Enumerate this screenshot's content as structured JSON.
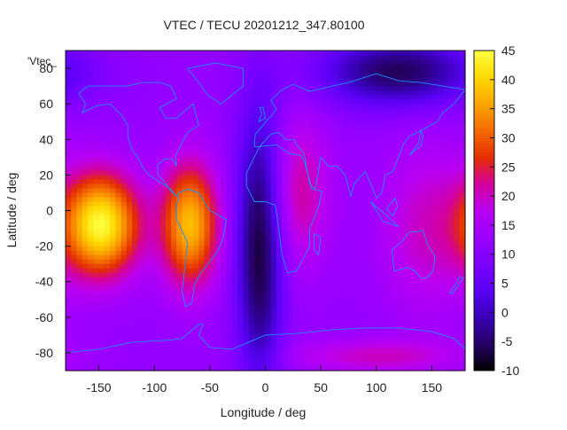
{
  "chart_data": {
    "type": "heatmap",
    "title": "VTEC / TECU 20201212_347.80100",
    "xlabel": "Longitude / deg",
    "ylabel": "Latitude / deg",
    "xlim": [
      -180,
      180
    ],
    "ylim": [
      -90,
      90
    ],
    "x_ticks": [
      {
        "value": -150,
        "label": "-150"
      },
      {
        "value": -100,
        "label": "-100"
      },
      {
        "value": -50,
        "label": "-50"
      },
      {
        "value": 0,
        "label": "0"
      },
      {
        "value": 50,
        "label": "50"
      },
      {
        "value": 100,
        "label": "100"
      },
      {
        "value": 150,
        "label": "150"
      }
    ],
    "y_ticks": [
      {
        "value": 80,
        "label": "80"
      },
      {
        "value": 60,
        "label": "60"
      },
      {
        "value": 40,
        "label": "40"
      },
      {
        "value": 20,
        "label": "20"
      },
      {
        "value": 0,
        "label": "0"
      },
      {
        "value": -20,
        "label": "-20"
      },
      {
        "value": -40,
        "label": "-40"
      },
      {
        "value": -60,
        "label": "-60"
      },
      {
        "value": -80,
        "label": "-80"
      }
    ],
    "colorbar": {
      "min": -10,
      "max": 45,
      "ticks": [
        {
          "value": 45,
          "label": "45"
        },
        {
          "value": 40,
          "label": "40"
        },
        {
          "value": 35,
          "label": "35"
        },
        {
          "value": 30,
          "label": "30"
        },
        {
          "value": 25,
          "label": "25"
        },
        {
          "value": 20,
          "label": "20"
        },
        {
          "value": 15,
          "label": "15"
        },
        {
          "value": 10,
          "label": "10"
        },
        {
          "value": 5,
          "label": "5"
        },
        {
          "value": 0,
          "label": "0"
        },
        {
          "value": -5,
          "label": "-5"
        },
        {
          "value": -10,
          "label": "-10"
        }
      ],
      "palette": [
        "#000000",
        "#250063",
        "#3800b4",
        "#5a00f5",
        "#7c00ff",
        "#9a00ff",
        "#b900f2",
        "#d3009e",
        "#e42d00",
        "#f46a00",
        "#fba400",
        "#ffd800",
        "#ffff40"
      ]
    },
    "legend_key": "'Vtec_",
    "heat_blobs": [
      {
        "lon": -148,
        "lat": -8,
        "value": 44,
        "sigma_lon": 24,
        "sigma_lat": 20
      },
      {
        "lon": -68,
        "lat": -8,
        "value": 38,
        "sigma_lon": 18,
        "sigma_lat": 24
      },
      {
        "lon": 30,
        "lat": 10,
        "value": 22,
        "sigma_lon": 20,
        "sigma_lat": 30
      },
      {
        "lon": 145,
        "lat": -10,
        "value": 20,
        "sigma_lon": 30,
        "sigma_lat": 34
      },
      {
        "lon": 100,
        "lat": -82,
        "value": 20,
        "sigma_lon": 55,
        "sigma_lat": 7
      }
    ],
    "base_value": 12,
    "low_regions": [
      {
        "lon": -5,
        "lat": -20,
        "value": -8,
        "sigma_lon": 15,
        "sigma_lat": 55
      },
      {
        "lon": 120,
        "lat": 78,
        "value": -6,
        "sigma_lon": 50,
        "sigma_lat": 14
      }
    ],
    "grid": false,
    "colors": {
      "coastline": "#1e90ff",
      "frame": "#111111"
    }
  }
}
